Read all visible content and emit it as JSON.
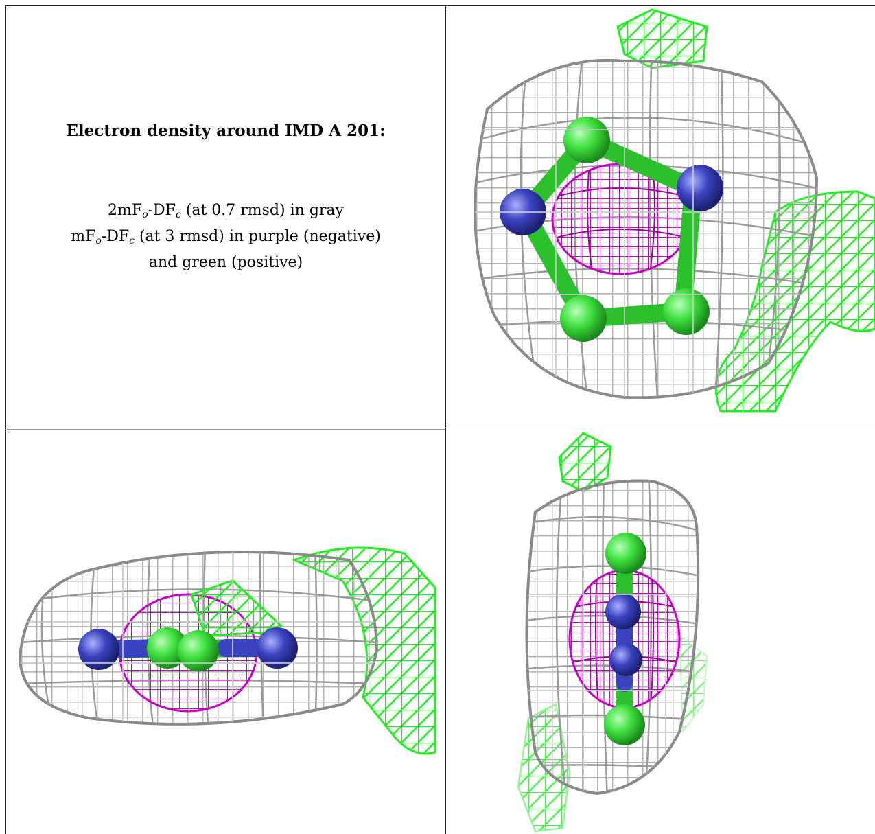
{
  "caption": {
    "title": "Electron density around IMD A 201:",
    "line1": {
      "pre": "2mF",
      "sub1": "o",
      "mid": "-DF",
      "sub2": "c",
      "post": " (at 0.7 rmsd) in gray"
    },
    "line2": {
      "pre": "mF",
      "sub1": "o",
      "mid": "-DF",
      "sub2": "c",
      "post": " (at 3 rmsd) in purple (negative)"
    },
    "line3": "and green (positive)"
  },
  "colors": {
    "gray_mesh": "#b5b5b5",
    "gray_mesh_dark": "#8a8a8a",
    "purple_mesh": "#c800c8",
    "green_mesh": "#22ee22",
    "carbon": "#3ee03e",
    "nitrogen": "#3b43c0"
  }
}
